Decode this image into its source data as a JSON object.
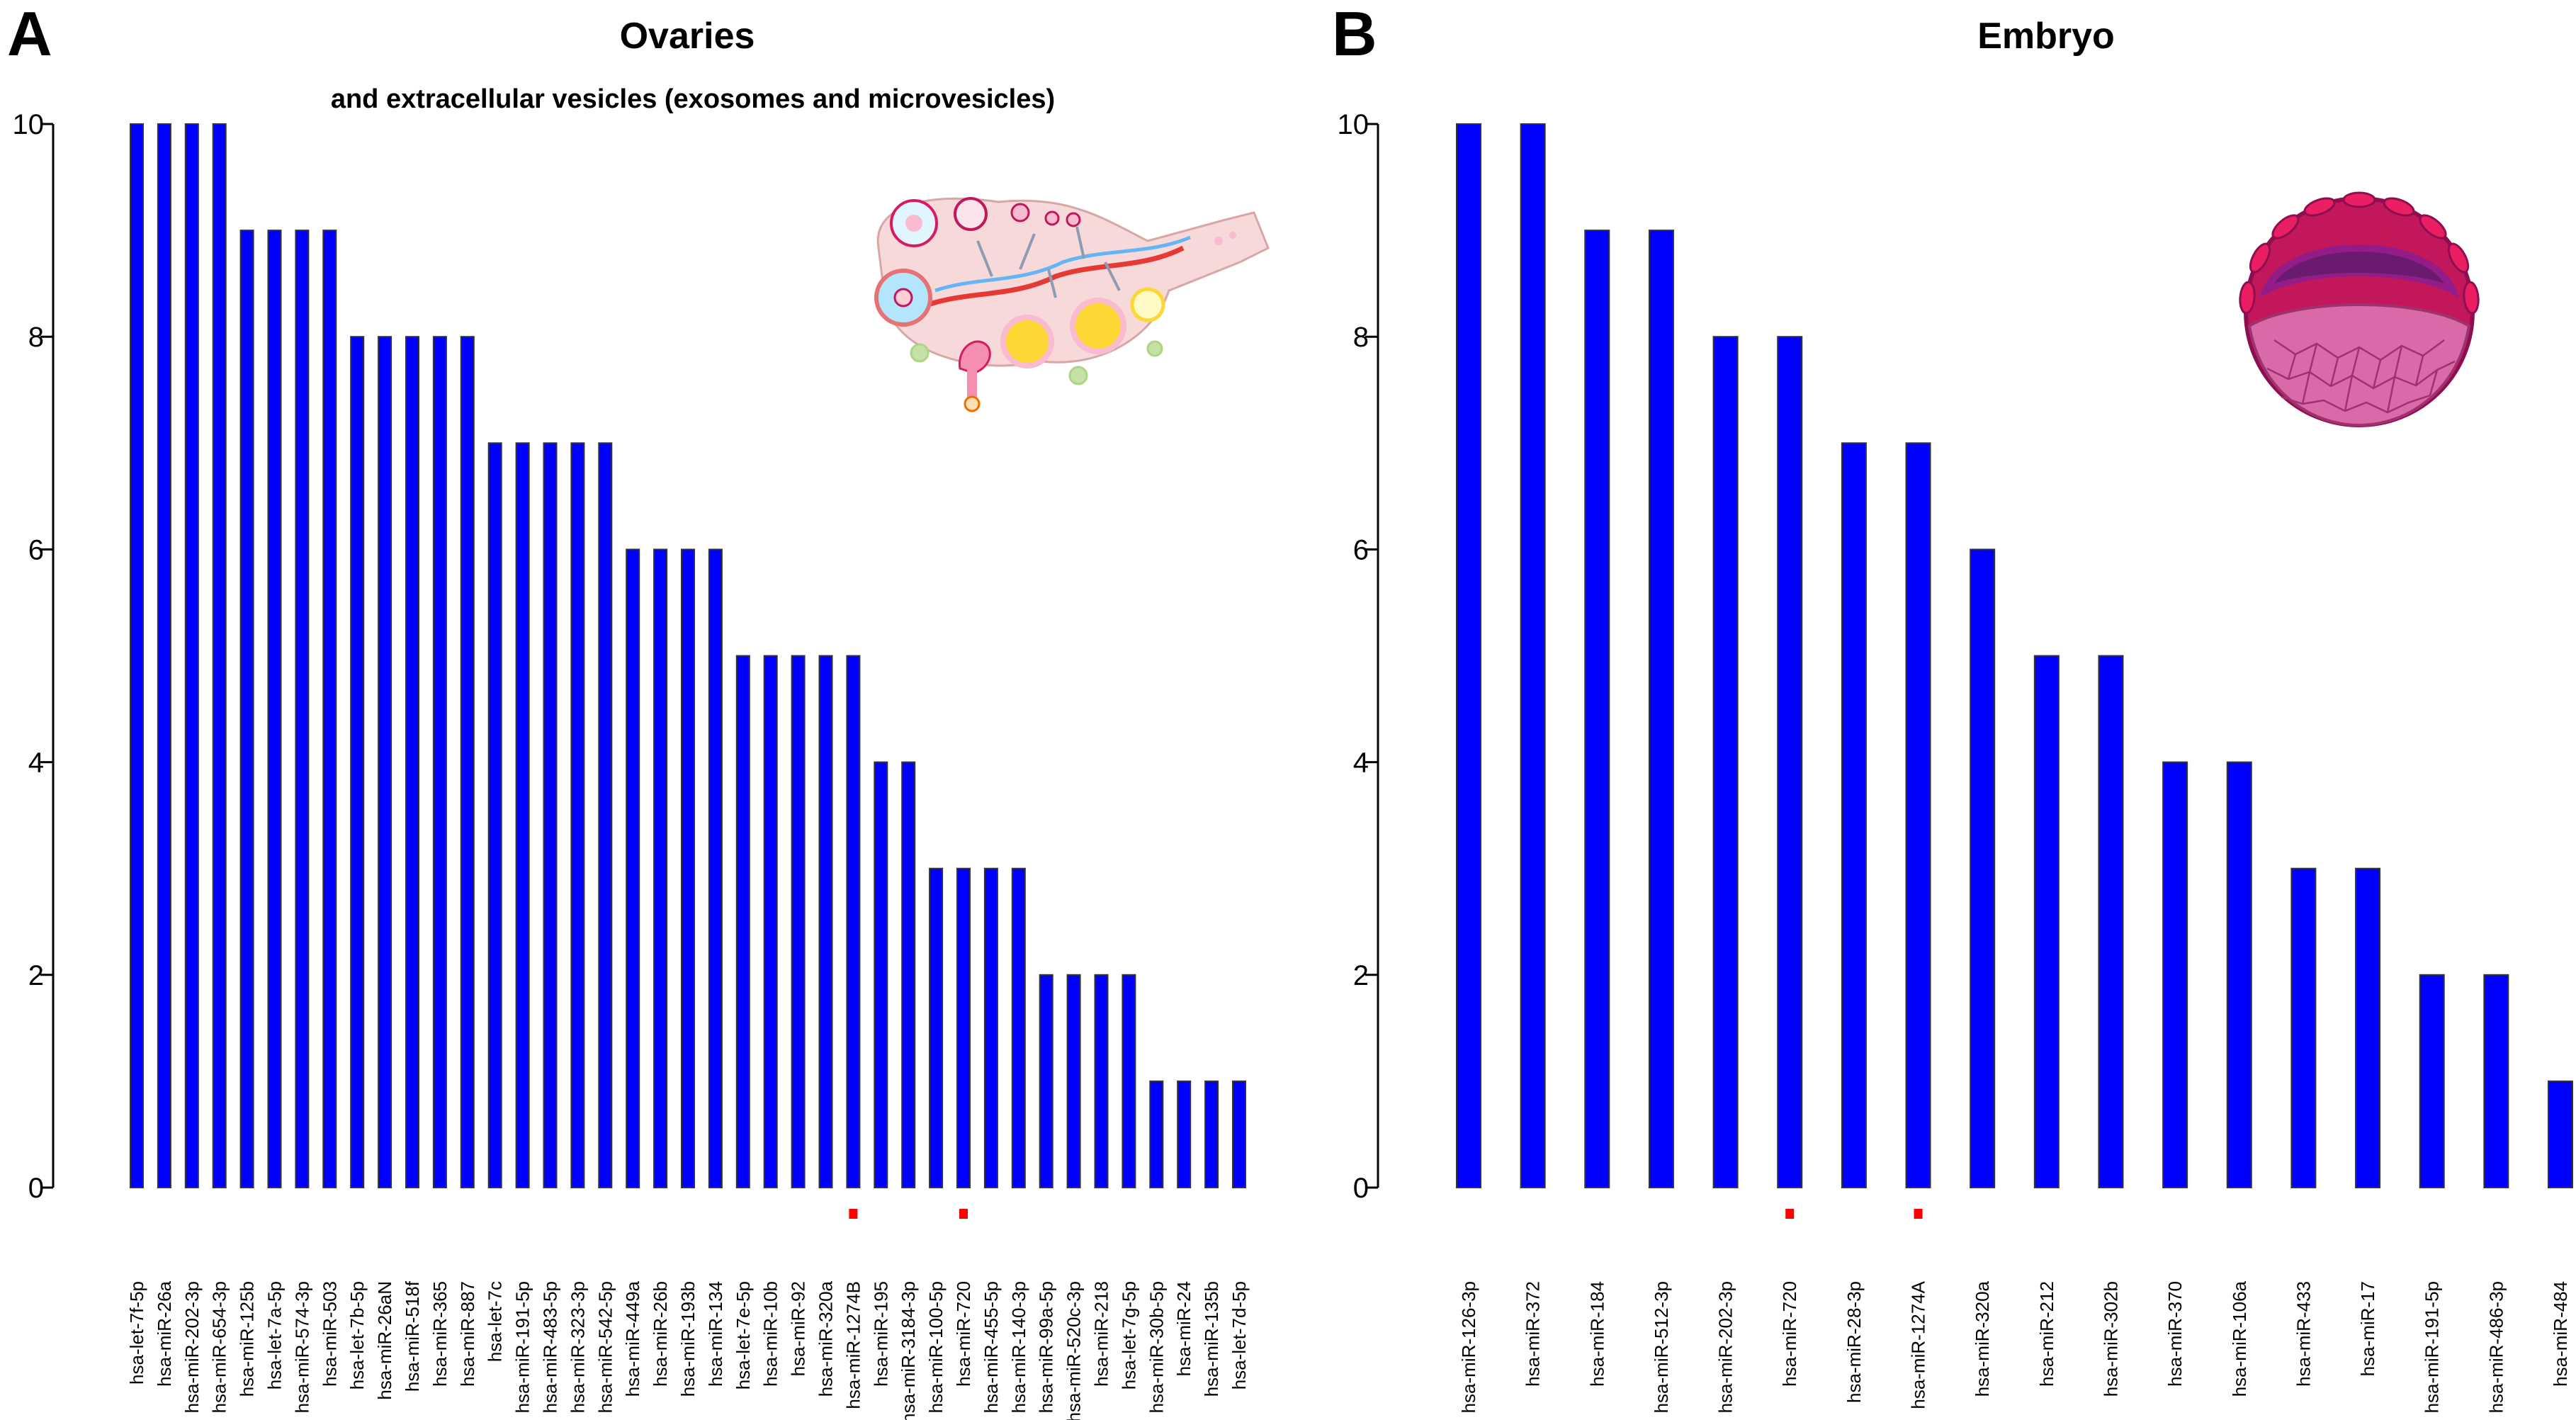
{
  "chart_data": [
    {
      "type": "bar",
      "panel_label": "A",
      "title": "Ovaries",
      "subtitle": "and extracellular vesicles (exosomes and microvesicles)",
      "xlabel": "",
      "ylabel": "",
      "ylim": [
        0,
        10
      ],
      "yticks": [
        "0",
        "2",
        "4",
        "6",
        "8",
        "10"
      ],
      "bar_color": "#0000ff",
      "marker_color": "#ff0000",
      "illustration": "ovary-illustration",
      "categories": [
        "hsa-let-7f-5p",
        "hsa-miR-26a",
        "hsa-miR-202-3p",
        "hsa-miR-654-3p",
        "hsa-miR-125b",
        "hsa-let-7a-5p",
        "hsa-miR-574-3p",
        "hsa-miR-503",
        "hsa-let-7b-5p",
        "hsa-miR-26aN",
        "hsa-miR-518f",
        "hsa-miR-365",
        "hsa-miR-887",
        "hsa-let-7c",
        "hsa-miR-191-5p",
        "hsa-miR-483-5p",
        "hsa-miR-323-3p",
        "hsa-miR-542-5p",
        "hsa-miR-449a",
        "hsa-miR-26b",
        "hsa-miR-193b",
        "hsa-miR-134",
        "hsa-let-7e-5p",
        "hsa-miR-10b",
        "hsa-miR-92",
        "hsa-miR-320a",
        "hsa-miR-1274B",
        "hsa-miR-195",
        "hsa-miR-3184-3p",
        "hsa-miR-100-5p",
        "hsa-miR-720",
        "hsa-miR-455-5p",
        "hsa-miR-140-3p",
        "hsa-miR-99a-5p",
        "hsa-miR-520c-3p",
        "hsa-miR-218",
        "hsa-let-7g-5p",
        "hsa-miR-30b-5p",
        "hsa-miR-24",
        "hsa-miR-135b",
        "hsa-let-7d-5p"
      ],
      "values": [
        10,
        10,
        10,
        10,
        9,
        9,
        9,
        9,
        8,
        8,
        8,
        8,
        8,
        7,
        7,
        7,
        7,
        7,
        6,
        6,
        6,
        6,
        5,
        5,
        5,
        5,
        5,
        4,
        4,
        3,
        3,
        3,
        3,
        2,
        2,
        2,
        2,
        1,
        1,
        1,
        1
      ],
      "marked_categories": [
        "hsa-miR-1274B",
        "hsa-miR-720"
      ]
    },
    {
      "type": "bar",
      "panel_label": "B",
      "title": "Embryo",
      "subtitle": "",
      "xlabel": "",
      "ylabel": "",
      "ylim": [
        0,
        10
      ],
      "yticks": [
        "0",
        "2",
        "4",
        "6",
        "8",
        "10"
      ],
      "bar_color": "#0000ff",
      "marker_color": "#ff0000",
      "illustration": "embryo-illustration",
      "categories": [
        "hsa-miR-126-3p",
        "hsa-miR-372",
        "hsa-miR-184",
        "hsa-miR-512-3p",
        "hsa-miR-202-3p",
        "hsa-miR-720",
        "hsa-miR-28-3p",
        "hsa-miR-1274A",
        "hsa-miR-320a",
        "hsa-miR-212",
        "hsa-miR-302b",
        "hsa-miR-370",
        "hsa-miR-106a",
        "hsa-miR-433",
        "hsa-miR-17",
        "hsa-miR-191-5p",
        "hsa-miR-486-3p",
        "hsa-miR-484"
      ],
      "values": [
        10,
        10,
        9,
        9,
        8,
        8,
        7,
        7,
        6,
        5,
        5,
        4,
        4,
        3,
        3,
        2,
        2,
        1
      ],
      "marked_categories": [
        "hsa-miR-720",
        "hsa-miR-1274A"
      ]
    }
  ]
}
